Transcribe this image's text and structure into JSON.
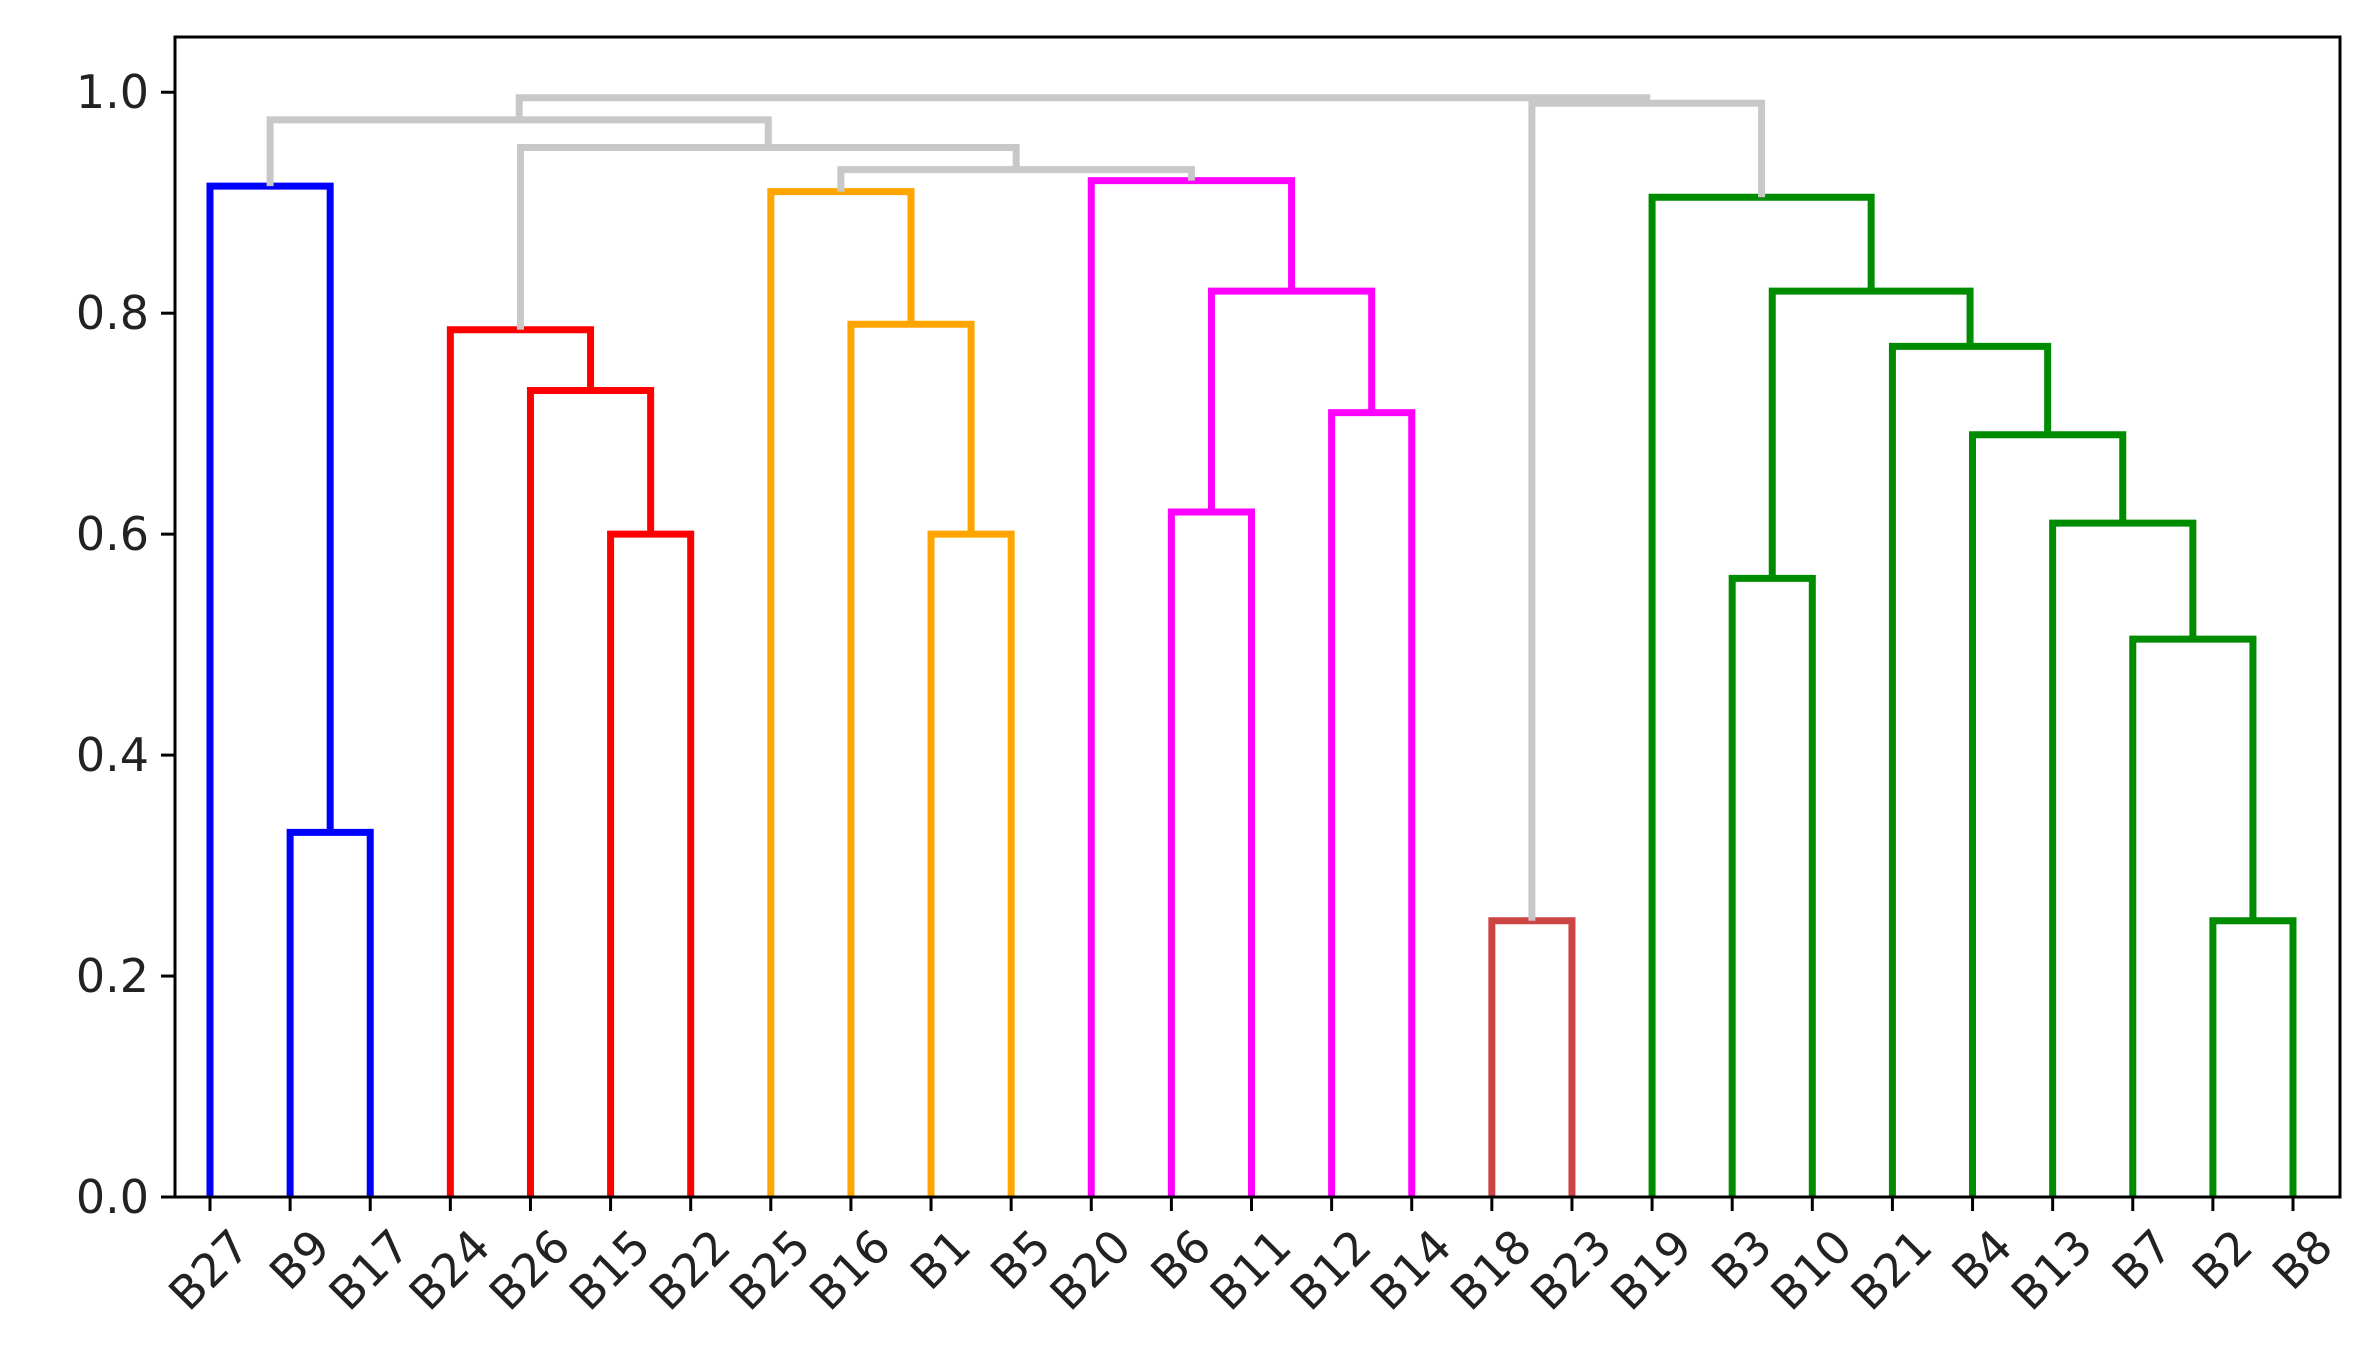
{
  "chart_data": {
    "type": "dendrogram",
    "title": "",
    "xlabel": "",
    "ylabel": "",
    "ylim": [
      0,
      1.05
    ],
    "y_ticks": [
      "0.0",
      "0.2",
      "0.4",
      "0.6",
      "0.8",
      "1.0"
    ],
    "y_tick_values": [
      0,
      0.2,
      0.4,
      0.6,
      0.8,
      1.0
    ],
    "leaves": [
      "B27",
      "B9",
      "B17",
      "B24",
      "B26",
      "B15",
      "B22",
      "B25",
      "B16",
      "B1",
      "B5",
      "B20",
      "B6",
      "B11",
      "B12",
      "B14",
      "B18",
      "B23",
      "B19",
      "B3",
      "B10",
      "B21",
      "B4",
      "B13",
      "B7",
      "B2",
      "B8"
    ],
    "above_threshold_color": "#c8c8c8",
    "merges": [
      {
        "a": "B9",
        "b": "B17",
        "height": 0.33,
        "color": "#0000ff"
      },
      {
        "a": "B27",
        "b": "m0",
        "height": 0.915,
        "color": "#0000ff"
      },
      {
        "a": "B15",
        "b": "B22",
        "height": 0.6,
        "color": "#ff0000"
      },
      {
        "a": "B26",
        "b": "m2",
        "height": 0.73,
        "color": "#ff0000"
      },
      {
        "a": "B24",
        "b": "m3",
        "height": 0.785,
        "color": "#ff0000"
      },
      {
        "a": "B1",
        "b": "B5",
        "height": 0.6,
        "color": "#ffa500"
      },
      {
        "a": "B16",
        "b": "m5",
        "height": 0.79,
        "color": "#ffa500"
      },
      {
        "a": "B25",
        "b": "m6",
        "height": 0.91,
        "color": "#ffa500"
      },
      {
        "a": "B6",
        "b": "B11",
        "height": 0.62,
        "color": "#ff00ff"
      },
      {
        "a": "B12",
        "b": "B14",
        "height": 0.71,
        "color": "#ff00ff"
      },
      {
        "a": "m8",
        "b": "m9",
        "height": 0.82,
        "color": "#ff00ff"
      },
      {
        "a": "B20",
        "b": "m10",
        "height": 0.92,
        "color": "#ff00ff"
      },
      {
        "a": "B18",
        "b": "B23",
        "height": 0.25,
        "color": "#cc4444"
      },
      {
        "a": "B2",
        "b": "B8",
        "height": 0.25,
        "color": "#008c00"
      },
      {
        "a": "B7",
        "b": "m13",
        "height": 0.505,
        "color": "#008c00"
      },
      {
        "a": "B13",
        "b": "m14",
        "height": 0.61,
        "color": "#008c00"
      },
      {
        "a": "B4",
        "b": "m15",
        "height": 0.69,
        "color": "#008c00"
      },
      {
        "a": "B21",
        "b": "m16",
        "height": 0.77,
        "color": "#008c00"
      },
      {
        "a": "B3",
        "b": "B10",
        "height": 0.56,
        "color": "#008c00"
      },
      {
        "a": "m18",
        "b": "m17",
        "height": 0.82,
        "color": "#008c00"
      },
      {
        "a": "B19",
        "b": "m19",
        "height": 0.905,
        "color": "#008c00"
      },
      {
        "a": "m7",
        "b": "m11",
        "height": 0.93,
        "color": "#c8c8c8"
      },
      {
        "a": "m4",
        "b": "m21",
        "height": 0.95,
        "color": "#c8c8c8"
      },
      {
        "a": "m1",
        "b": "m22",
        "height": 0.975,
        "color": "#c8c8c8"
      },
      {
        "a": "m12",
        "b": "m20",
        "height": 0.99,
        "color": "#c8c8c8"
      },
      {
        "a": "m23",
        "b": "m24",
        "height": 0.995,
        "color": "#c8c8c8"
      }
    ]
  }
}
